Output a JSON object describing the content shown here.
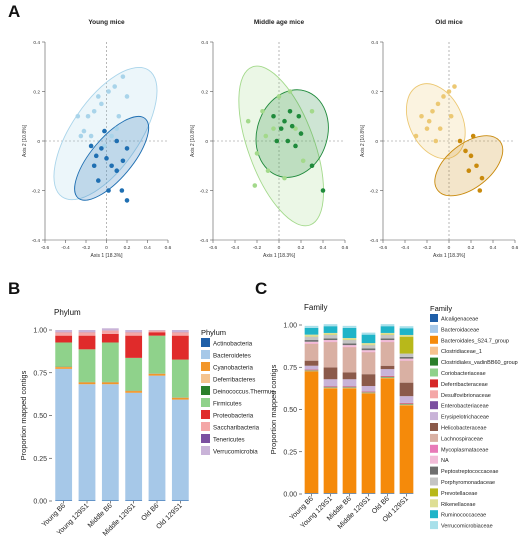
{
  "panels": {
    "a": "A",
    "b": "B",
    "c": "C"
  },
  "chart_data": [
    {
      "type": "scatter",
      "panel": "A",
      "title": "Young mice",
      "xlabel": "Axis 1 [18.3%]",
      "ylabel": "Axis 2 [10.8%]",
      "xlim": [
        -0.6,
        0.6
      ],
      "ylim": [
        -0.4,
        0.4
      ],
      "xticks": [
        "-0.6",
        "-0.4",
        "-0.2",
        "0",
        "0.2",
        "0.4",
        "0.6"
      ],
      "yticks": [
        "-0.4",
        "-0.2",
        "0",
        "0.2",
        "0.4"
      ],
      "series": [
        {
          "color": "#a9d4ea",
          "points": [
            [
              -0.28,
              0.1
            ],
            [
              -0.22,
              0.04
            ],
            [
              -0.15,
              0.02
            ],
            [
              -0.12,
              0.12
            ],
            [
              -0.08,
              0.18
            ],
            [
              -0.05,
              0.15
            ],
            [
              0.02,
              0.2
            ],
            [
              0.08,
              0.22
            ],
            [
              0.12,
              0.1
            ],
            [
              0.16,
              0.26
            ],
            [
              0.2,
              0.18
            ],
            [
              -0.18,
              0.1
            ],
            [
              0.05,
              0.02
            ],
            [
              -0.02,
              -0.02
            ],
            [
              0.1,
              0.05
            ],
            [
              -0.25,
              0.02
            ]
          ]
        },
        {
          "color": "#1f6fb2",
          "points": [
            [
              -0.15,
              -0.02
            ],
            [
              -0.1,
              -0.06
            ],
            [
              -0.05,
              -0.03
            ],
            [
              0,
              -0.07
            ],
            [
              0.05,
              -0.1
            ],
            [
              -0.12,
              -0.1
            ],
            [
              -0.08,
              -0.16
            ],
            [
              0.02,
              -0.2
            ],
            [
              0.1,
              -0.12
            ],
            [
              0.15,
              -0.2
            ],
            [
              0.2,
              -0.03
            ],
            [
              -0.02,
              0.04
            ],
            [
              0.1,
              0.0
            ],
            [
              0.16,
              -0.08
            ],
            [
              0.2,
              -0.24
            ]
          ]
        }
      ],
      "ellipses": [
        {
          "color": "#a9d4ea",
          "center": [
            -0.01,
            0.03
          ],
          "rx": 0.33,
          "ry": 0.31,
          "angle": -0.6
        },
        {
          "color": "#1f6fb2",
          "center": [
            0.05,
            -0.07
          ],
          "rx": 0.2,
          "ry": 0.21,
          "angle": -0.7
        }
      ]
    },
    {
      "type": "scatter",
      "panel": "A",
      "title": "Middle age mice",
      "xlabel": "Axis 1 [18.3%]",
      "ylabel": "Axis 2 [10.8%]",
      "xlim": [
        -0.6,
        0.6
      ],
      "ylim": [
        -0.4,
        0.4
      ],
      "xticks": [
        "-0.6",
        "-0.4",
        "-0.2",
        "0",
        "0.2",
        "0.4",
        "0.6"
      ],
      "yticks": [
        "-0.4",
        "-0.2",
        "0",
        "0.2",
        "0.4"
      ],
      "series": [
        {
          "color": "#a3d98b",
          "points": [
            [
              -0.28,
              0.08
            ],
            [
              -0.2,
              -0.05
            ],
            [
              -0.15,
              0.12
            ],
            [
              -0.1,
              -0.12
            ],
            [
              -0.05,
              0.05
            ],
            [
              0.0,
              0.18
            ],
            [
              0.05,
              -0.15
            ],
            [
              0.1,
              0.2
            ],
            [
              0.15,
              0.05
            ],
            [
              -0.22,
              -0.18
            ],
            [
              0.22,
              -0.08
            ],
            [
              -0.12,
              0.02
            ],
            [
              0.3,
              0.12
            ]
          ]
        },
        {
          "color": "#1f8a3b",
          "points": [
            [
              -0.05,
              0.1
            ],
            [
              0.02,
              0.05
            ],
            [
              0.05,
              0.08
            ],
            [
              0.1,
              0.12
            ],
            [
              0.08,
              0.0
            ],
            [
              0.15,
              -0.02
            ],
            [
              0.18,
              0.1
            ],
            [
              -0.02,
              0.0
            ],
            [
              0.2,
              0.03
            ],
            [
              0.3,
              -0.1
            ],
            [
              0.4,
              -0.2
            ],
            [
              0.12,
              0.06
            ]
          ]
        }
      ],
      "ellipses": [
        {
          "color": "#a3d98b",
          "center": [
            0.02,
            -0.02
          ],
          "rx": 0.3,
          "ry": 0.34,
          "angle": 0.35
        },
        {
          "color": "#1f8a3b",
          "center": [
            0.12,
            0.03
          ],
          "rx": 0.32,
          "ry": 0.18,
          "angle": -0.3
        }
      ]
    },
    {
      "type": "scatter",
      "panel": "A",
      "title": "Old mice",
      "xlabel": "Axis 1 [18.3%]",
      "ylabel": "Axis 2 [10.8%]",
      "xlim": [
        -0.6,
        0.6
      ],
      "ylim": [
        -0.4,
        0.4
      ],
      "xticks": [
        "-0.6",
        "-0.4",
        "-0.2",
        "0",
        "0.2",
        "0.4",
        "0.6"
      ],
      "yticks": [
        "-0.4",
        "-0.2",
        "0",
        "0.2",
        "0.4"
      ],
      "series": [
        {
          "color": "#ecc873",
          "points": [
            [
              -0.3,
              0.02
            ],
            [
              -0.25,
              0.1
            ],
            [
              -0.2,
              0.05
            ],
            [
              -0.15,
              0.12
            ],
            [
              -0.1,
              0.15
            ],
            [
              -0.05,
              0.18
            ],
            [
              0.0,
              0.2
            ],
            [
              0.05,
              0.22
            ],
            [
              -0.12,
              0.0
            ],
            [
              -0.18,
              0.08
            ],
            [
              0.02,
              0.1
            ],
            [
              -0.08,
              0.05
            ]
          ]
        },
        {
          "color": "#c98a0c",
          "points": [
            [
              0.1,
              0.0
            ],
            [
              0.15,
              -0.04
            ],
            [
              0.2,
              -0.06
            ],
            [
              0.25,
              -0.1
            ],
            [
              0.3,
              -0.15
            ],
            [
              0.18,
              -0.12
            ],
            [
              0.22,
              0.02
            ],
            [
              0.28,
              -0.2
            ]
          ]
        }
      ],
      "ellipses": [
        {
          "color": "#ecc873",
          "center": [
            -0.12,
            0.08
          ],
          "rx": 0.24,
          "ry": 0.16,
          "angle": 0.45
        },
        {
          "color": "#c98a0c",
          "center": [
            0.18,
            -0.1
          ],
          "rx": 0.2,
          "ry": 0.16,
          "angle": -0.9
        }
      ]
    },
    {
      "type": "bar",
      "stacked": true,
      "panel": "B",
      "title": "Phylum",
      "ylabel": "Proportion mapped contigs",
      "ylim": [
        0,
        1
      ],
      "yticks": [
        "0.00",
        "0.25",
        "0.50",
        "0.75",
        "1.00"
      ],
      "categories": [
        "Young B6",
        "Young 129S1",
        "Middle B6",
        "Middle 129S1",
        "Old B6",
        "Old 129S1"
      ],
      "legend_title": "Phylum",
      "legend_position": "right",
      "series": [
        {
          "name": "Actinobacteria",
          "color": "#1f5fa8",
          "values": [
            0.003,
            0.003,
            0.003,
            0.003,
            0.003,
            0.003
          ]
        },
        {
          "name": "Bacteroidetes",
          "color": "#a6c8e8",
          "values": [
            0.77,
            0.68,
            0.68,
            0.63,
            0.73,
            0.59
          ]
        },
        {
          "name": "Cyanobacteria",
          "color": "#f2962a",
          "values": [
            0.01,
            0.01,
            0.01,
            0.01,
            0.01,
            0.01
          ]
        },
        {
          "name": "Deferribacteres",
          "color": "#f5c38d",
          "values": [
            0.002,
            0.002,
            0.002,
            0.002,
            0.002,
            0.002
          ]
        },
        {
          "name": "Deinococcus.Thermus",
          "color": "#2a7f2a",
          "values": [
            0.002,
            0.002,
            0.002,
            0.002,
            0.002,
            0.002
          ]
        },
        {
          "name": "Firmicutes",
          "color": "#8fd28b",
          "values": [
            0.14,
            0.19,
            0.23,
            0.19,
            0.22,
            0.22
          ]
        },
        {
          "name": "Proteobacteria",
          "color": "#e02b2b",
          "values": [
            0.04,
            0.08,
            0.05,
            0.13,
            0.02,
            0.14
          ]
        },
        {
          "name": "Saccharibacteria",
          "color": "#f4a7a7",
          "values": [
            0.02,
            0.02,
            0.02,
            0.02,
            0.01,
            0.02
          ]
        },
        {
          "name": "Tenericutes",
          "color": "#7b4fa0",
          "values": [
            0.001,
            0.001,
            0.001,
            0.001,
            0.001,
            0.001
          ]
        },
        {
          "name": "Verrucomicrobia",
          "color": "#c9b3d8",
          "values": [
            0.012,
            0.012,
            0.012,
            0.012,
            0.002,
            0.012
          ]
        }
      ]
    },
    {
      "type": "bar",
      "stacked": true,
      "panel": "C",
      "title": "Family",
      "ylabel": "Proportion mapped contigs",
      "ylim": [
        0,
        1
      ],
      "yticks": [
        "0.00",
        "0.25",
        "0.50",
        "0.75",
        "1.00"
      ],
      "categories": [
        "Young B6",
        "Young 129S1",
        "Middle B6",
        "Middle 129S1",
        "Old B6",
        "Old 129S1"
      ],
      "legend_title": "Family",
      "legend_position": "right",
      "series": [
        {
          "name": "Alcaligenaceae",
          "color": "#1f5fa8",
          "values": [
            0.003,
            0.003,
            0.003,
            0.003,
            0.003,
            0.003
          ]
        },
        {
          "name": "Bacteroidaceae",
          "color": "#a6c8e8",
          "values": [
            0.002,
            0.002,
            0.002,
            0.002,
            0.002,
            0.002
          ]
        },
        {
          "name": "Bacteroidales_S24.7_group",
          "color": "#f58a0a",
          "values": [
            0.72,
            0.62,
            0.62,
            0.59,
            0.68,
            0.52
          ]
        },
        {
          "name": "Clostridiaceae_1",
          "color": "#f6c28e",
          "values": [
            0.002,
            0.002,
            0.002,
            0.002,
            0.002,
            0.002
          ]
        },
        {
          "name": "Clostridiales_vadinBB60_group",
          "color": "#2a7f2a",
          "values": [
            0.002,
            0.002,
            0.002,
            0.002,
            0.002,
            0.002
          ]
        },
        {
          "name": "Coriobacteriaceae",
          "color": "#8fd28b",
          "values": [
            0.003,
            0.003,
            0.003,
            0.003,
            0.003,
            0.003
          ]
        },
        {
          "name": "Deferribacteraceae",
          "color": "#d62828",
          "values": [
            0.003,
            0.003,
            0.003,
            0.003,
            0.003,
            0.003
          ]
        },
        {
          "name": "Desulfovibrionaceae",
          "color": "#f4a7a7",
          "values": [
            0.002,
            0.002,
            0.002,
            0.002,
            0.002,
            0.002
          ]
        },
        {
          "name": "Enterobacteriaceae",
          "color": "#7b4fa0",
          "values": [
            0.002,
            0.002,
            0.002,
            0.002,
            0.002,
            0.002
          ]
        },
        {
          "name": "Erysipelotrichaceae",
          "color": "#c9b3d8",
          "values": [
            0.02,
            0.04,
            0.04,
            0.03,
            0.04,
            0.04
          ]
        },
        {
          "name": "Helicobacteraceae",
          "color": "#8b5a4a",
          "values": [
            0.03,
            0.07,
            0.04,
            0.07,
            0.02,
            0.08
          ]
        },
        {
          "name": "Lachnospiraceae",
          "color": "#d9b0a3",
          "values": [
            0.1,
            0.15,
            0.15,
            0.13,
            0.14,
            0.13
          ]
        },
        {
          "name": "Mycoplasmataceae",
          "color": "#e87ab8",
          "values": [
            0.002,
            0.002,
            0.002,
            0.002,
            0.002,
            0.002
          ]
        },
        {
          "name": "NA",
          "color": "#f2bcd8",
          "values": [
            0.01,
            0.01,
            0.01,
            0.01,
            0.01,
            0.01
          ]
        },
        {
          "name": "Peptostreptococcaceae",
          "color": "#6e6e6e",
          "values": [
            0.01,
            0.01,
            0.01,
            0.01,
            0.01,
            0.01
          ]
        },
        {
          "name": "Porphyromonadaceae",
          "color": "#c4c4c4",
          "values": [
            0.02,
            0.02,
            0.02,
            0.02,
            0.02,
            0.02
          ]
        },
        {
          "name": "Prevotellaceae",
          "color": "#b8b81a",
          "values": [
            0.002,
            0.002,
            0.002,
            0.002,
            0.002,
            0.1
          ]
        },
        {
          "name": "Rikenellaceae",
          "color": "#dede94",
          "values": [
            0.01,
            0.01,
            0.01,
            0.01,
            0.01,
            0.01
          ]
        },
        {
          "name": "Ruminococcaceae",
          "color": "#1fb4c8",
          "values": [
            0.04,
            0.04,
            0.06,
            0.05,
            0.04,
            0.04
          ]
        },
        {
          "name": "Verrucomicrobiaceae",
          "color": "#a8e0ea",
          "values": [
            0.012,
            0.012,
            0.012,
            0.012,
            0.012,
            0.012
          ]
        }
      ]
    }
  ]
}
